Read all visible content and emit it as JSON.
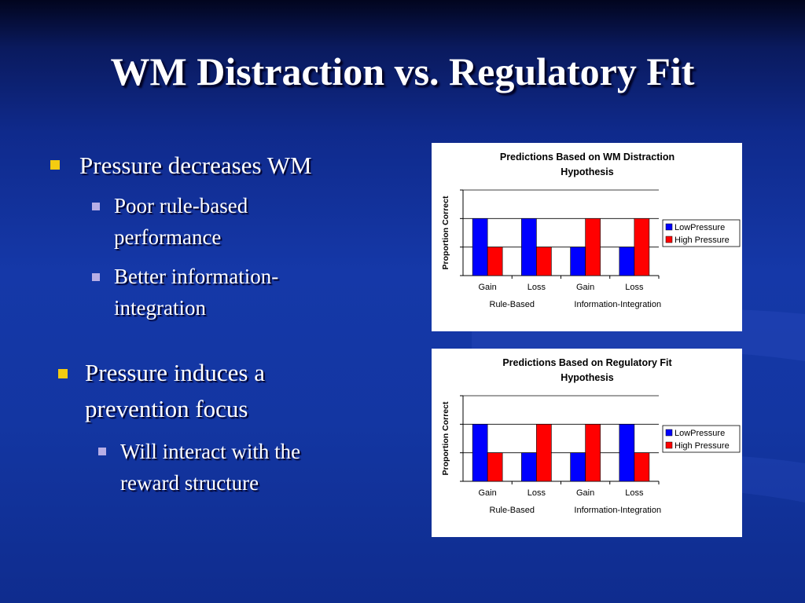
{
  "slide": {
    "title": "WM Distraction vs. Regulatory Fit",
    "bullets": [
      {
        "text": "Pressure decreases WM",
        "sub": [
          "Poor rule-based performance",
          "Better information-integration"
        ]
      },
      {
        "text": "Pressure induces a prevention focus",
        "sub": [
          "Will interact with the reward structure"
        ]
      }
    ]
  },
  "colors": {
    "bullet_primary": "#f4cc10",
    "bullet_secondary": "#b7aee6",
    "low_pressure": "#0000ff",
    "high_pressure": "#ff0000"
  },
  "chart_data": [
    {
      "type": "bar",
      "title_lines": [
        "Predictions Based on WM Distraction",
        "Hypothesis"
      ],
      "ylabel": "Proportion Correct",
      "categories": [
        "Gain",
        "Loss",
        "Gain",
        "Loss"
      ],
      "groups": [
        "Rule-Based",
        "Information-Integration"
      ],
      "series": [
        {
          "name": "LowPressure",
          "values": [
            2,
            2,
            1,
            1
          ]
        },
        {
          "name": "High Pressure",
          "values": [
            1,
            1,
            2,
            2
          ]
        }
      ],
      "ylim": [
        0,
        3
      ],
      "grid": true,
      "legend": "right"
    },
    {
      "type": "bar",
      "title_lines": [
        "Predictions Based on Regulatory Fit",
        "Hypothesis"
      ],
      "ylabel": "Proportion Correct",
      "categories": [
        "Gain",
        "Loss",
        "Gain",
        "Loss"
      ],
      "groups": [
        "Rule-Based",
        "Information-Integration"
      ],
      "series": [
        {
          "name": "LowPressure",
          "values": [
            2,
            1,
            1,
            2
          ]
        },
        {
          "name": "High Pressure",
          "values": [
            1,
            2,
            2,
            1
          ]
        }
      ],
      "ylim": [
        0,
        3
      ],
      "grid": true,
      "legend": "right"
    }
  ]
}
